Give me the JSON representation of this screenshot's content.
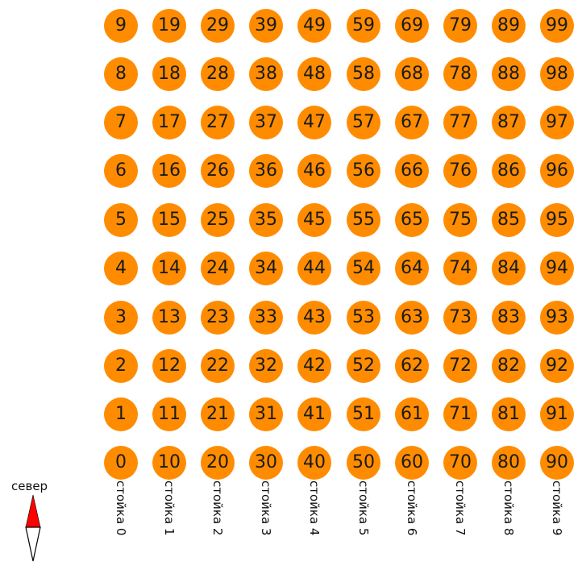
{
  "nodes_by_rack": [
    [
      "0",
      "1",
      "2",
      "3",
      "4",
      "5",
      "6",
      "7",
      "8",
      "9"
    ],
    [
      "10",
      "11",
      "12",
      "13",
      "14",
      "15",
      "16",
      "17",
      "18",
      "19"
    ],
    [
      "20",
      "21",
      "22",
      "23",
      "24",
      "25",
      "26",
      "27",
      "28",
      "29"
    ],
    [
      "30",
      "31",
      "32",
      "33",
      "34",
      "35",
      "36",
      "37",
      "38",
      "39"
    ],
    [
      "40",
      "41",
      "42",
      "43",
      "44",
      "45",
      "46",
      "47",
      "48",
      "49"
    ],
    [
      "50",
      "51",
      "52",
      "53",
      "54",
      "55",
      "56",
      "57",
      "58",
      "59"
    ],
    [
      "60",
      "61",
      "62",
      "63",
      "64",
      "65",
      "66",
      "67",
      "68",
      "69"
    ],
    [
      "70",
      "71",
      "72",
      "73",
      "74",
      "75",
      "76",
      "77",
      "78",
      "79"
    ],
    [
      "80",
      "81",
      "82",
      "83",
      "84",
      "85",
      "86",
      "87",
      "88",
      "89"
    ],
    [
      "90",
      "91",
      "92",
      "93",
      "94",
      "95",
      "96",
      "97",
      "98",
      "99"
    ]
  ],
  "rack_labels": [
    "стойка 0",
    "стойка 1",
    "стойка 2",
    "стойка 3",
    "стойка 4",
    "стойка 5",
    "стойка 6",
    "стойка 7",
    "стойка 8",
    "стойка 9"
  ],
  "compass": {
    "label": "север",
    "icon": "north-arrow-icon",
    "north_color": "#ff0000",
    "south_color": "#ffffff"
  },
  "colors": {
    "node_fill": "#ff8c00",
    "node_text": "#1a1a1a"
  }
}
